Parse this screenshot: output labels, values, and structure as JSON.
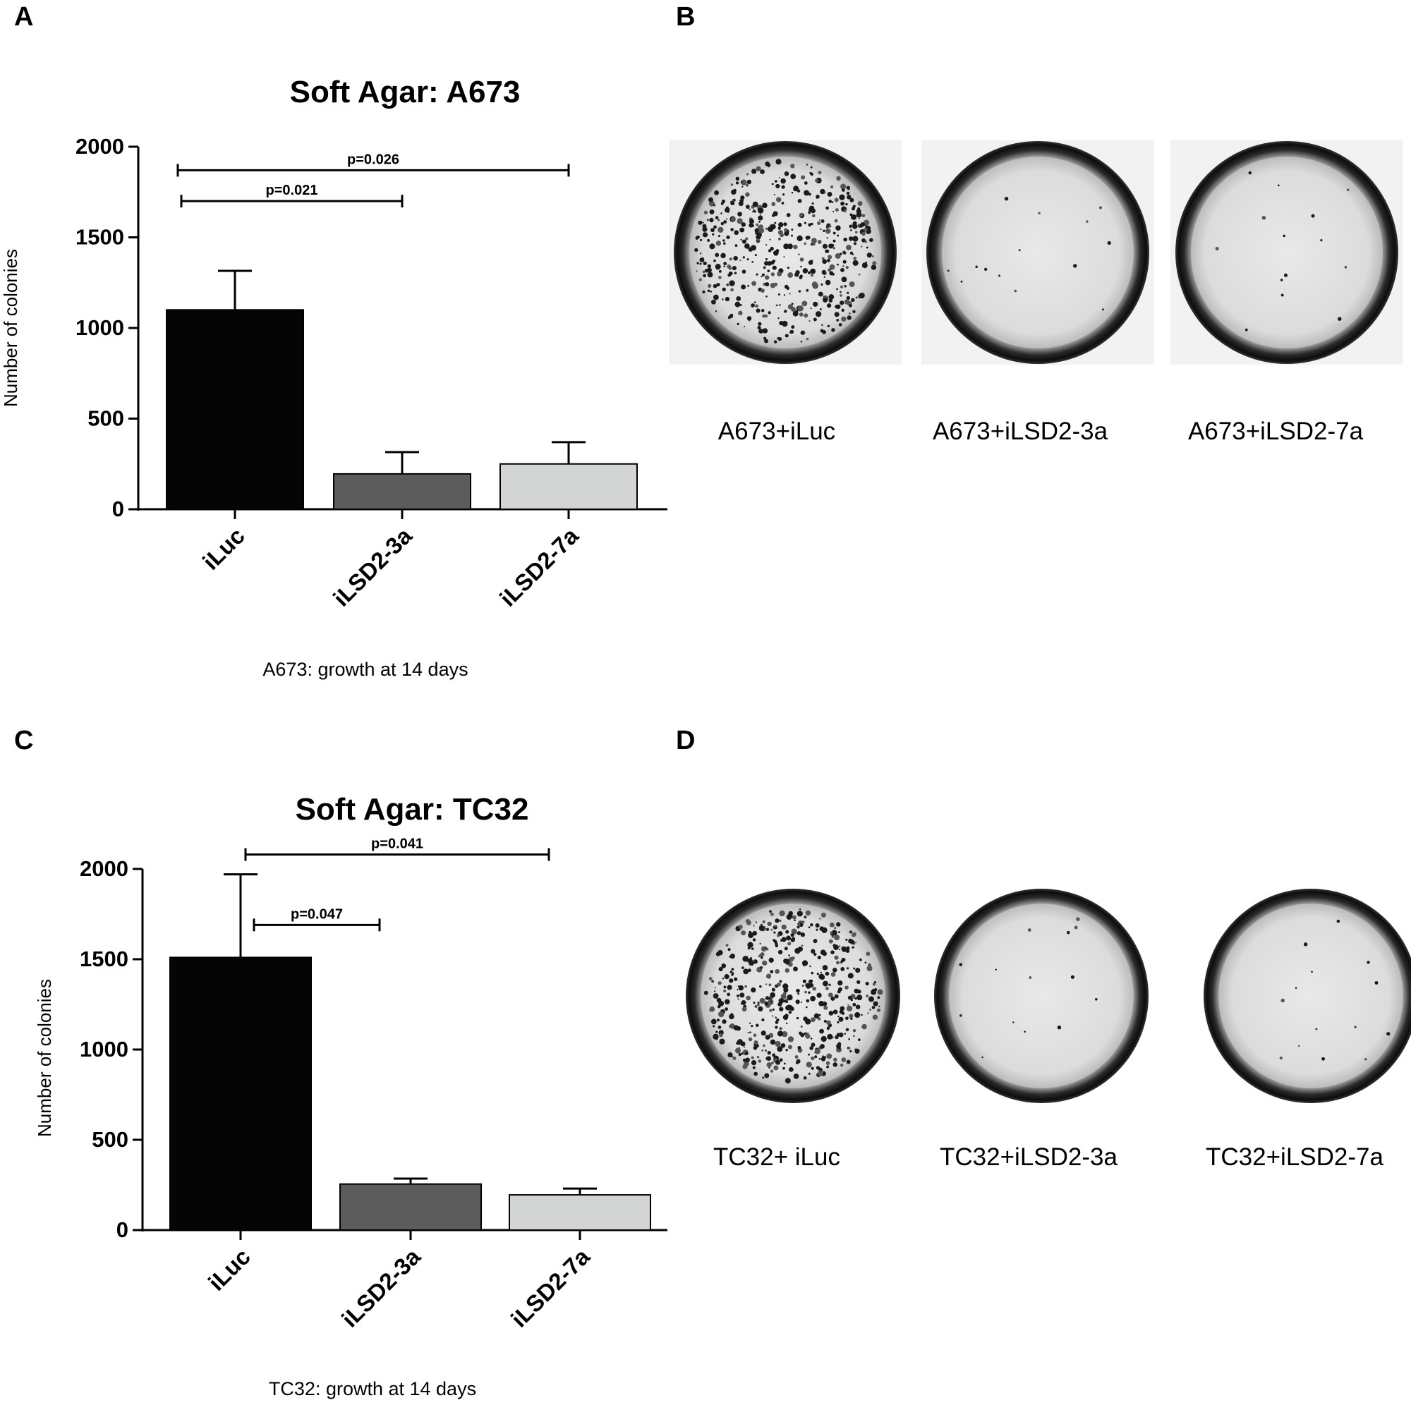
{
  "panels": [
    {
      "letter": "A"
    },
    {
      "letter": "B"
    },
    {
      "letter": "C"
    },
    {
      "letter": "D"
    }
  ],
  "chart_data": [
    {
      "type": "bar",
      "title": "Soft Agar: A673",
      "ylabel": "Number of colonies",
      "xlabel": "",
      "caption": "A673: growth at 14 days",
      "categories": [
        "iLuc",
        "iLSD2-3a",
        "iLSD2-7a"
      ],
      "values": [
        1100,
        195,
        250
      ],
      "errors": [
        215,
        120,
        120
      ],
      "bar_colors": [
        "#050505",
        "#5c5c5c",
        "#d3d5d4"
      ],
      "ylim": [
        0,
        2000
      ],
      "yticks": [
        0,
        500,
        1000,
        1500,
        2000
      ],
      "grid": false,
      "significance": [
        {
          "from": 0,
          "to": 1,
          "label": "p=0.021",
          "level": 1700
        },
        {
          "from": 0,
          "to": 2,
          "label": "p=0.026",
          "level": 1870
        }
      ]
    },
    {
      "type": "bar",
      "title": "Soft Agar: TC32",
      "ylabel": "Number of colonies",
      "xlabel": "",
      "caption": "TC32: growth at 14 days",
      "categories": [
        "iLuc",
        "iLSD2-3a",
        "iLSD2-7a"
      ],
      "values": [
        1510,
        255,
        195
      ],
      "errors": [
        460,
        30,
        35
      ],
      "bar_colors": [
        "#050505",
        "#5c5c5c",
        "#d3d5d4"
      ],
      "ylim": [
        0,
        2000
      ],
      "yticks": [
        0,
        500,
        1000,
        1500,
        2000
      ],
      "grid": false,
      "significance": [
        {
          "from": 0,
          "to": 1,
          "label": "p=0.047",
          "level": 1690
        },
        {
          "from": 0,
          "to": 2,
          "label": "p=0.041",
          "level": 2080
        }
      ]
    }
  ],
  "plates": [
    {
      "panel": "B",
      "images": [
        {
          "caption": "A673+iLuc",
          "colonies": "dense"
        },
        {
          "caption": "A673+iLSD2-3a",
          "colonies": "sparse"
        },
        {
          "caption": "A673+iLSD2-7a",
          "colonies": "sparse"
        }
      ]
    },
    {
      "panel": "D",
      "images": [
        {
          "caption": "TC32+ iLuc",
          "colonies": "dense"
        },
        {
          "caption": "TC32+iLSD2-3a",
          "colonies": "sparse"
        },
        {
          "caption": "TC32+iLSD2-7a",
          "colonies": "sparse"
        }
      ]
    }
  ]
}
